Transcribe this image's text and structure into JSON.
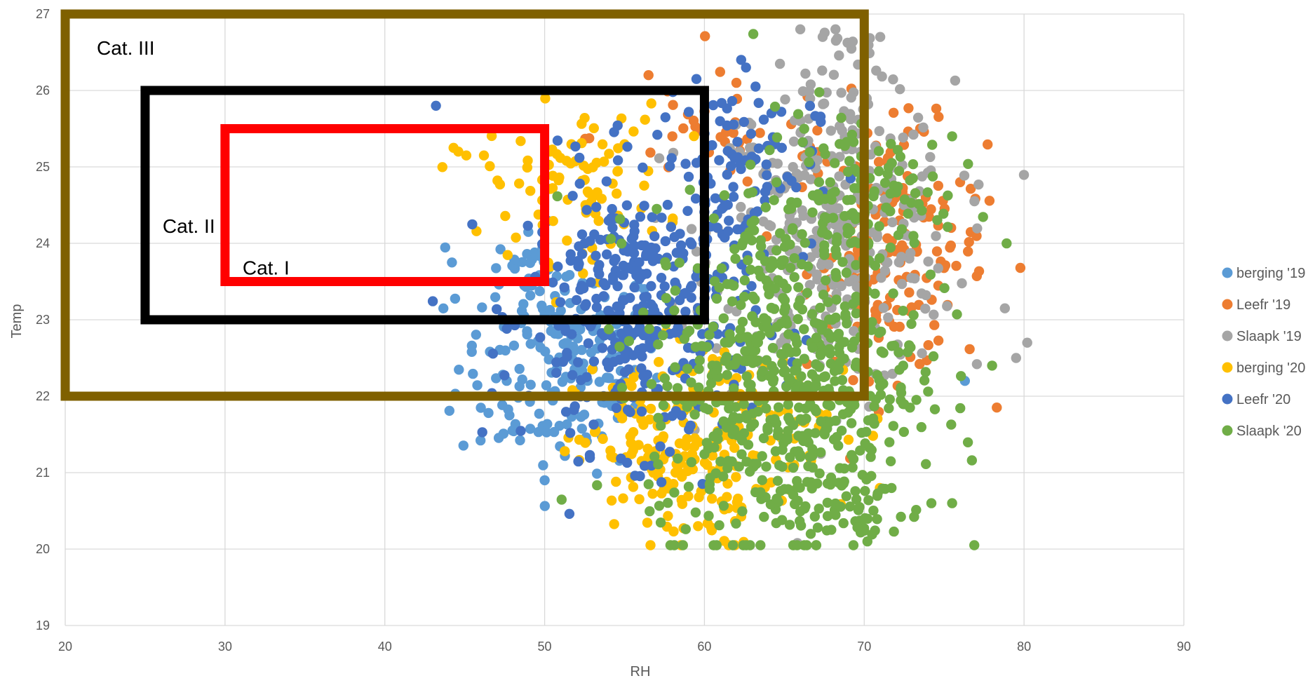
{
  "chart_data": {
    "type": "scatter",
    "title": "",
    "xlabel": "RH",
    "ylabel": "Temp",
    "xlim": [
      20,
      90
    ],
    "ylim": [
      19,
      27
    ],
    "x_ticks": [
      "20",
      "30",
      "40",
      "50",
      "60",
      "70",
      "80",
      "90"
    ],
    "y_ticks": [
      "19",
      "20",
      "21",
      "22",
      "23",
      "24",
      "25",
      "26",
      "27"
    ],
    "grid": true,
    "legend_position": "right",
    "series": [
      {
        "name": "berging '19",
        "color": "#5B9BD5",
        "clusters": [
          {
            "x": 51,
            "y": 22.4,
            "sx": 3.2,
            "sy": 0.7,
            "n": 170
          },
          {
            "x": 49,
            "y": 23.6,
            "sx": 1.5,
            "sy": 0.3,
            "n": 30
          }
        ],
        "points": [
          [
            44.2,
            23.75
          ],
          [
            50.0,
            20.9
          ],
          [
            47.8,
            21.75
          ],
          [
            76.3,
            22.2
          ]
        ]
      },
      {
        "name": "Leefr '19",
        "color": "#ED7D31",
        "clusters": [
          {
            "x": 72,
            "y": 23.9,
            "sx": 2.8,
            "sy": 0.8,
            "n": 150
          },
          {
            "x": 62,
            "y": 25.4,
            "sx": 4.5,
            "sy": 0.4,
            "n": 40
          }
        ],
        "points": [
          [
            56.5,
            26.2
          ],
          [
            62.0,
            26.1
          ],
          [
            73.5,
            25.5
          ],
          [
            76.0,
            24.8
          ]
        ]
      },
      {
        "name": "Slaapk '19",
        "color": "#A5A5A5",
        "clusters": [
          {
            "x": 68,
            "y": 24.1,
            "sx": 3.8,
            "sy": 1.0,
            "n": 330
          },
          {
            "x": 68.5,
            "y": 26.3,
            "sx": 1.8,
            "sy": 0.35,
            "n": 25
          }
        ],
        "points": [
          [
            66.0,
            26.8
          ],
          [
            67.4,
            26.7
          ],
          [
            68.2,
            26.8
          ],
          [
            71.0,
            26.7
          ],
          [
            79.5,
            22.5
          ],
          [
            80.2,
            22.7
          ],
          [
            78.8,
            23.15
          ]
        ]
      },
      {
        "name": "berging '20",
        "color": "#FFC000",
        "clusters": [
          {
            "x": 58,
            "y": 21.2,
            "sx": 3.0,
            "sy": 0.6,
            "n": 170
          },
          {
            "x": 52,
            "y": 24.8,
            "sx": 2.8,
            "sy": 0.5,
            "n": 90
          },
          {
            "x": 64,
            "y": 21.5,
            "sx": 4.0,
            "sy": 0.6,
            "n": 60
          }
        ],
        "points": [
          [
            44.3,
            25.25
          ],
          [
            44.6,
            25.2
          ],
          [
            45.1,
            25.15
          ],
          [
            46.2,
            25.15
          ],
          [
            59.6,
            20.3
          ]
        ]
      },
      {
        "name": "Leefr '20",
        "color": "#4472C4",
        "clusters": [
          {
            "x": 56,
            "y": 23.1,
            "sx": 3.5,
            "sy": 0.9,
            "n": 360
          },
          {
            "x": 62,
            "y": 25.0,
            "sx": 2.5,
            "sy": 0.55,
            "n": 90
          }
        ],
        "points": [
          [
            43.2,
            25.8
          ],
          [
            62.3,
            26.4
          ],
          [
            62.6,
            26.3
          ],
          [
            63.2,
            26.05
          ],
          [
            59.5,
            26.15
          ]
        ]
      },
      {
        "name": "Slaapk '20",
        "color": "#70AD47",
        "clusters": [
          {
            "x": 65,
            "y": 22.3,
            "sx": 4.2,
            "sy": 1.1,
            "n": 580
          },
          {
            "x": 69,
            "y": 24.6,
            "sx": 3.0,
            "sy": 0.6,
            "n": 120
          },
          {
            "x": 68,
            "y": 20.6,
            "sx": 3.0,
            "sy": 0.3,
            "n": 60
          }
        ],
        "points": [
          [
            65.8,
            20.05
          ],
          [
            66.4,
            20.05
          ],
          [
            67.0,
            20.05
          ],
          [
            70.2,
            20.1
          ],
          [
            74.2,
            20.6
          ],
          [
            75.5,
            20.6
          ],
          [
            78.0,
            22.4
          ],
          [
            75.5,
            25.4
          ]
        ]
      }
    ],
    "regions": [
      {
        "label": "Cat. III",
        "x": [
          20,
          70
        ],
        "y": [
          22,
          27
        ],
        "color": "#7F6000"
      },
      {
        "label": "Cat. II",
        "x": [
          25,
          60
        ],
        "y": [
          23,
          26
        ],
        "color": "#000000"
      },
      {
        "label": "Cat. I",
        "x": [
          30,
          50
        ],
        "y": [
          23.5,
          25.5
        ],
        "color": "#FF0000"
      }
    ]
  }
}
